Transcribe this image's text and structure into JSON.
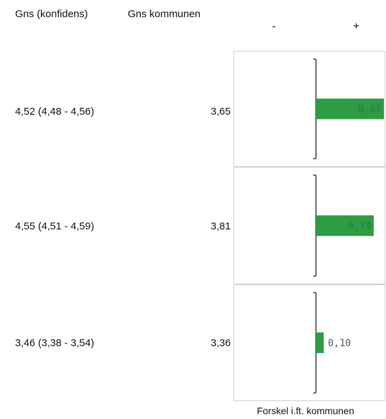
{
  "headers": {
    "confidence": "Gns  (konfidens)",
    "municipality": "Gns kommunen",
    "minus": "-",
    "plus": "+"
  },
  "rows": [
    {
      "confidence": "4,52 (4,48 - 4,56)",
      "municipality": "3,65",
      "diff_label": "0,87"
    },
    {
      "confidence": "4,55 (4,51 - 4,59)",
      "municipality": "3,81",
      "diff_label": "0,74"
    },
    {
      "confidence": "3,46 (3,38 - 3,54)",
      "municipality": "3,36",
      "diff_label": "0,10"
    }
  ],
  "footer": "Forskel i.ft. kommunen",
  "colors": {
    "bar": "#2e9b45",
    "bar_label_on_bar": "#2c7a3c",
    "bar_label_outside": "#555555",
    "axis": "#444444",
    "panel_border": "#cfcfcf"
  },
  "chart_data": {
    "type": "bar",
    "orientation": "horizontal",
    "categories": [
      "4,52 (4,48 - 4,56)",
      "4,55 (4,51 - 4,59)",
      "3,46 (3,38 - 3,54)"
    ],
    "values": [
      0.87,
      0.74,
      0.1
    ],
    "xlim": [
      -1.0,
      1.0
    ],
    "xlabel": "Forskel i.ft. kommunen",
    "ylabel": "",
    "title": "",
    "grid": false
  }
}
